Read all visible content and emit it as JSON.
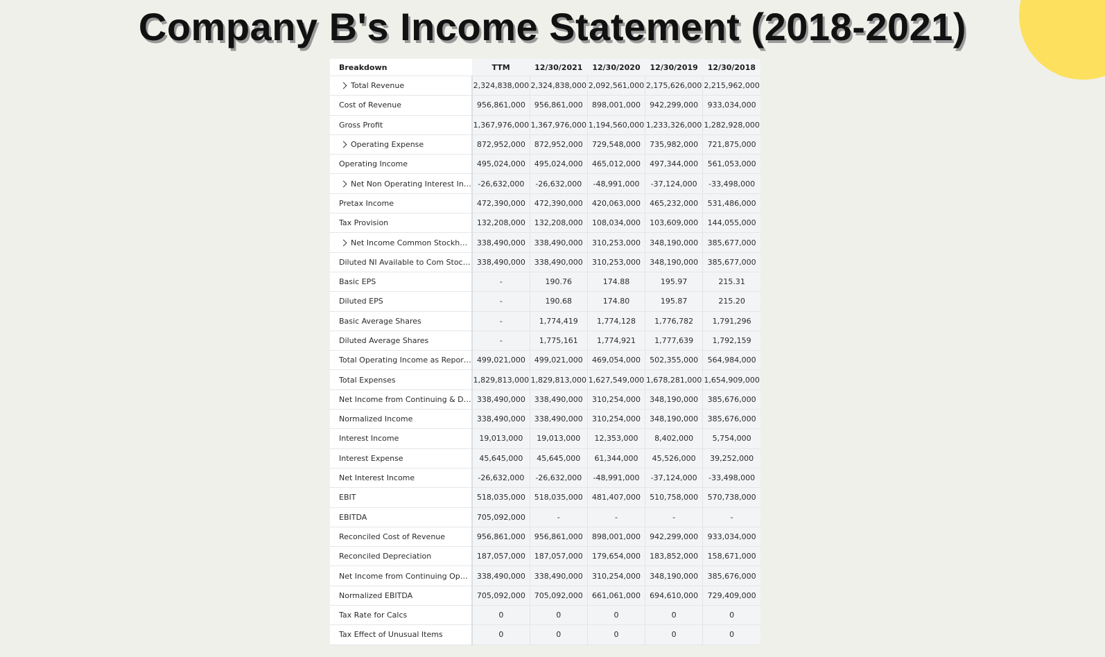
{
  "title": "Company B's Income Statement (2018-2021)",
  "colors": {
    "background": "#f0f0eb",
    "accent_circle": "#fde05e",
    "value_cell_bg": "#f2f4f6"
  },
  "icons": {
    "expand": "chevron-right-icon"
  },
  "table": {
    "headers": [
      "Breakdown",
      "TTM",
      "12/30/2021",
      "12/30/2020",
      "12/30/2019",
      "12/30/2018"
    ],
    "rows": [
      {
        "label": "Total Revenue",
        "expandable": true,
        "values": [
          "2,324,838,000",
          "2,324,838,000",
          "2,092,561,000",
          "2,175,626,000",
          "2,215,962,000"
        ]
      },
      {
        "label": "Cost of Revenue",
        "expandable": false,
        "values": [
          "956,861,000",
          "956,861,000",
          "898,001,000",
          "942,299,000",
          "933,034,000"
        ]
      },
      {
        "label": "Gross Profit",
        "expandable": false,
        "values": [
          "1,367,976,000",
          "1,367,976,000",
          "1,194,560,000",
          "1,233,326,000",
          "1,282,928,000"
        ]
      },
      {
        "label": "Operating Expense",
        "expandable": true,
        "values": [
          "872,952,000",
          "872,952,000",
          "729,548,000",
          "735,982,000",
          "721,875,000"
        ]
      },
      {
        "label": "Operating Income",
        "expandable": false,
        "values": [
          "495,024,000",
          "495,024,000",
          "465,012,000",
          "497,344,000",
          "561,053,000"
        ]
      },
      {
        "label": "Net Non Operating Interest Inc...",
        "expandable": true,
        "values": [
          "-26,632,000",
          "-26,632,000",
          "-48,991,000",
          "-37,124,000",
          "-33,498,000"
        ]
      },
      {
        "label": "Pretax Income",
        "expandable": false,
        "values": [
          "472,390,000",
          "472,390,000",
          "420,063,000",
          "465,232,000",
          "531,486,000"
        ]
      },
      {
        "label": "Tax Provision",
        "expandable": false,
        "values": [
          "132,208,000",
          "132,208,000",
          "108,034,000",
          "103,609,000",
          "144,055,000"
        ]
      },
      {
        "label": "Net Income Common Stockhold...",
        "expandable": true,
        "values": [
          "338,490,000",
          "338,490,000",
          "310,253,000",
          "348,190,000",
          "385,677,000"
        ]
      },
      {
        "label": "Diluted NI Available to Com Stock...",
        "expandable": false,
        "values": [
          "338,490,000",
          "338,490,000",
          "310,253,000",
          "348,190,000",
          "385,677,000"
        ]
      },
      {
        "label": "Basic EPS",
        "expandable": false,
        "values": [
          "-",
          "190.76",
          "174.88",
          "195.97",
          "215.31"
        ]
      },
      {
        "label": "Diluted EPS",
        "expandable": false,
        "values": [
          "-",
          "190.68",
          "174.80",
          "195.87",
          "215.20"
        ]
      },
      {
        "label": "Basic Average Shares",
        "expandable": false,
        "values": [
          "-",
          "1,774,419",
          "1,774,128",
          "1,776,782",
          "1,791,296"
        ]
      },
      {
        "label": "Diluted Average Shares",
        "expandable": false,
        "values": [
          "-",
          "1,775,161",
          "1,774,921",
          "1,777,639",
          "1,792,159"
        ]
      },
      {
        "label": "Total Operating Income as Reported",
        "expandable": false,
        "values": [
          "499,021,000",
          "499,021,000",
          "469,054,000",
          "502,355,000",
          "564,984,000"
        ]
      },
      {
        "label": "Total Expenses",
        "expandable": false,
        "values": [
          "1,829,813,000",
          "1,829,813,000",
          "1,627,549,000",
          "1,678,281,000",
          "1,654,909,000"
        ]
      },
      {
        "label": "Net Income from Continuing & Dis...",
        "expandable": false,
        "values": [
          "338,490,000",
          "338,490,000",
          "310,254,000",
          "348,190,000",
          "385,676,000"
        ]
      },
      {
        "label": "Normalized Income",
        "expandable": false,
        "values": [
          "338,490,000",
          "338,490,000",
          "310,254,000",
          "348,190,000",
          "385,676,000"
        ]
      },
      {
        "label": "Interest Income",
        "expandable": false,
        "values": [
          "19,013,000",
          "19,013,000",
          "12,353,000",
          "8,402,000",
          "5,754,000"
        ]
      },
      {
        "label": "Interest Expense",
        "expandable": false,
        "values": [
          "45,645,000",
          "45,645,000",
          "61,344,000",
          "45,526,000",
          "39,252,000"
        ]
      },
      {
        "label": "Net Interest Income",
        "expandable": false,
        "values": [
          "-26,632,000",
          "-26,632,000",
          "-48,991,000",
          "-37,124,000",
          "-33,498,000"
        ]
      },
      {
        "label": "EBIT",
        "expandable": false,
        "values": [
          "518,035,000",
          "518,035,000",
          "481,407,000",
          "510,758,000",
          "570,738,000"
        ]
      },
      {
        "label": "EBITDA",
        "expandable": false,
        "values": [
          "705,092,000",
          "-",
          "-",
          "-",
          "-"
        ]
      },
      {
        "label": "Reconciled Cost of Revenue",
        "expandable": false,
        "values": [
          "956,861,000",
          "956,861,000",
          "898,001,000",
          "942,299,000",
          "933,034,000"
        ]
      },
      {
        "label": "Reconciled Depreciation",
        "expandable": false,
        "values": [
          "187,057,000",
          "187,057,000",
          "179,654,000",
          "183,852,000",
          "158,671,000"
        ]
      },
      {
        "label": "Net Income from Continuing Oper...",
        "expandable": false,
        "values": [
          "338,490,000",
          "338,490,000",
          "310,254,000",
          "348,190,000",
          "385,676,000"
        ]
      },
      {
        "label": "Normalized EBITDA",
        "expandable": false,
        "values": [
          "705,092,000",
          "705,092,000",
          "661,061,000",
          "694,610,000",
          "729,409,000"
        ]
      },
      {
        "label": "Tax Rate for Calcs",
        "expandable": false,
        "values": [
          "0",
          "0",
          "0",
          "0",
          "0"
        ]
      },
      {
        "label": "Tax Effect of Unusual Items",
        "expandable": false,
        "values": [
          "0",
          "0",
          "0",
          "0",
          "0"
        ]
      }
    ]
  }
}
